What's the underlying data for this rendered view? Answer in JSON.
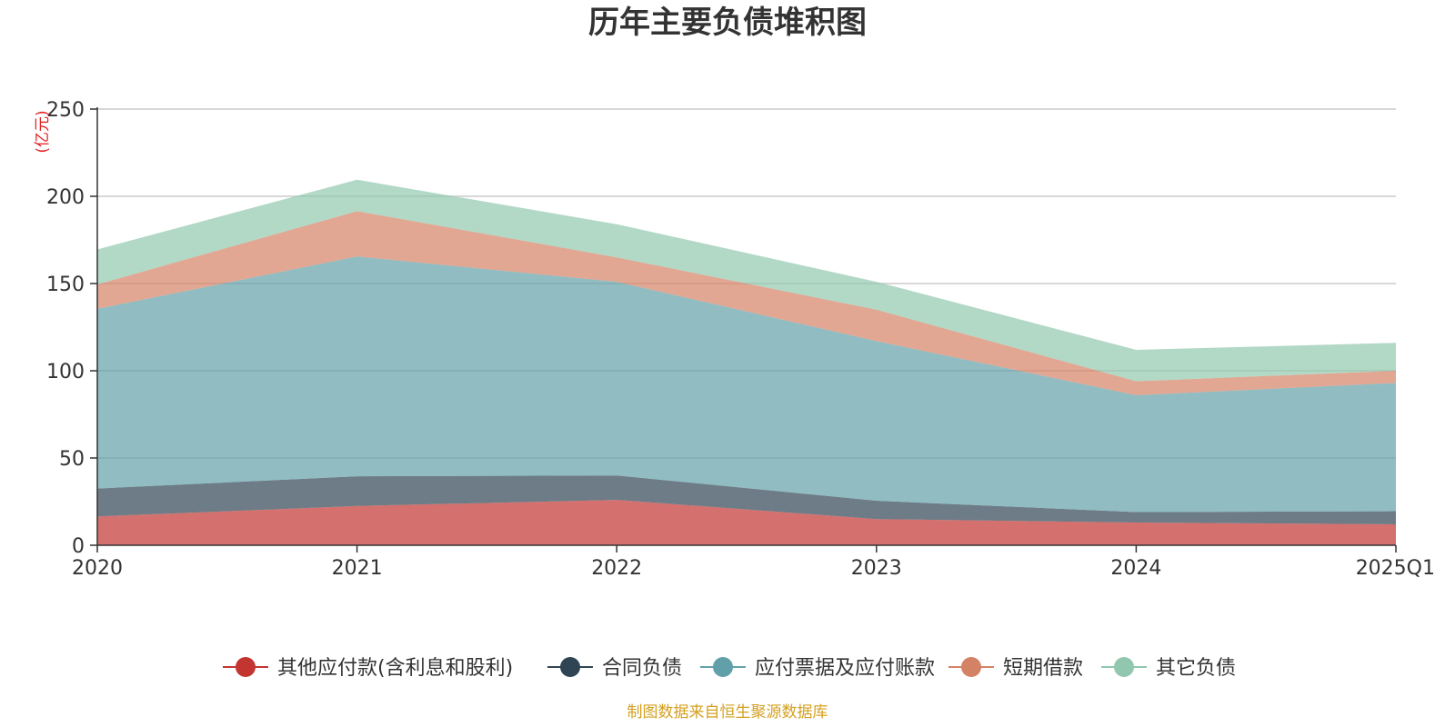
{
  "chart_data": {
    "type": "area",
    "stacked": true,
    "title": "历年主要负债堆积图",
    "unit": "(亿元)",
    "source": "制图数据来自恒生聚源数据库",
    "categories": [
      "2020",
      "2021",
      "2022",
      "2023",
      "2024",
      "2025Q1"
    ],
    "ylim": [
      0,
      250
    ],
    "yticks": [
      "0",
      "50",
      "100",
      "150",
      "200",
      "250"
    ],
    "grid": true,
    "legend_position": "bottom",
    "series": [
      {
        "name": "其他应付款(含利息和股利)",
        "color": "#c23531",
        "values": [
          16.5,
          22.5,
          26,
          15,
          13,
          12
        ]
      },
      {
        "name": "合同负债",
        "color": "#2f4554",
        "values": [
          16,
          17,
          14,
          10.5,
          6,
          7.5
        ]
      },
      {
        "name": "应付票据及应付账款",
        "color": "#61a0a8",
        "values": [
          103,
          126,
          111,
          91.5,
          67,
          73.5
        ]
      },
      {
        "name": "短期借款",
        "color": "#d48265",
        "values": [
          14,
          26,
          14,
          18,
          8,
          7
        ]
      },
      {
        "name": "其它负债",
        "color": "#91c7ae",
        "values": [
          20,
          18,
          19,
          16,
          18,
          16
        ]
      }
    ]
  }
}
